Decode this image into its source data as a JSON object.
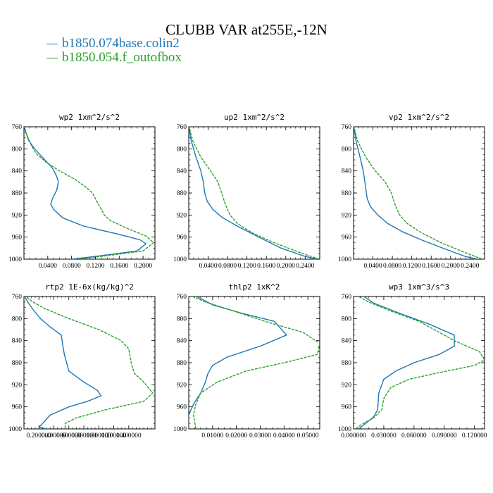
{
  "figure": {
    "title": "CLUBB VAR at255E,-12N",
    "legend": [
      {
        "label": "b1850.074base.colin2",
        "color": "#1f77b4"
      },
      {
        "label": "b1850.054.f_outofbox",
        "color": "#2ca02c"
      }
    ]
  },
  "chart_data": [
    {
      "type": "line",
      "title": "wp2  1xm^2/s^2",
      "ylim": [
        760,
        1000
      ],
      "xlim": [
        0,
        0.22
      ],
      "xticks": [
        0.04,
        0.08,
        0.12,
        0.16,
        0.2
      ],
      "xtick_labels": [
        "0.0400",
        "0.0800",
        "0.1200",
        "0.1600",
        "0.2000"
      ],
      "yticks": [
        760,
        800,
        840,
        880,
        920,
        960,
        1000
      ],
      "series": [
        {
          "color": "#1f77b4",
          "dashed": false,
          "points": [
            [
              0.0,
              757
            ],
            [
              0.003,
              770
            ],
            [
              0.008,
              785
            ],
            [
              0.018,
              800
            ],
            [
              0.035,
              820
            ],
            [
              0.048,
              835
            ],
            [
              0.055,
              850
            ],
            [
              0.058,
              860
            ],
            [
              0.055,
              875
            ],
            [
              0.048,
              890
            ],
            [
              0.045,
              900
            ],
            [
              0.05,
              910
            ],
            [
              0.065,
              925
            ],
            [
              0.1,
              940
            ],
            [
              0.16,
              955
            ],
            [
              0.195,
              965
            ],
            [
              0.205,
              972
            ],
            [
              0.19,
              985
            ],
            [
              0.12,
              995
            ],
            [
              0.08,
              1000
            ]
          ]
        },
        {
          "color": "#2ca02c",
          "dashed": true,
          "points": [
            [
              0.0,
              757
            ],
            [
              0.005,
              775
            ],
            [
              0.013,
              795
            ],
            [
              0.02,
              808
            ],
            [
              0.038,
              825
            ],
            [
              0.06,
              840
            ],
            [
              0.085,
              855
            ],
            [
              0.105,
              870
            ],
            [
              0.115,
              880
            ],
            [
              0.12,
              890
            ],
            [
              0.125,
              900
            ],
            [
              0.13,
              910
            ],
            [
              0.135,
              920
            ],
            [
              0.145,
              930
            ],
            [
              0.175,
              945
            ],
            [
              0.205,
              958
            ],
            [
              0.218,
              970
            ],
            [
              0.2,
              985
            ],
            [
              0.13,
              995
            ],
            [
              0.09,
              1000
            ]
          ]
        }
      ]
    },
    {
      "type": "line",
      "title": "up2  1xm^2/s^2",
      "ylim": [
        760,
        1000
      ],
      "xlim": [
        0,
        0.27
      ],
      "xticks": [
        0.04,
        0.08,
        0.12,
        0.16,
        0.2,
        0.24
      ],
      "xtick_labels": [
        "0.0400",
        "0.0800",
        "0.1200",
        "0.1600",
        "0.2000",
        "0.2400"
      ],
      "yticks": [
        760,
        800,
        840,
        880,
        920,
        960,
        1000
      ],
      "series": [
        {
          "color": "#1f77b4",
          "dashed": false,
          "points": [
            [
              0.0,
              757
            ],
            [
              0.005,
              785
            ],
            [
              0.015,
              815
            ],
            [
              0.025,
              840
            ],
            [
              0.03,
              860
            ],
            [
              0.033,
              880
            ],
            [
              0.038,
              895
            ],
            [
              0.05,
              910
            ],
            [
              0.07,
              925
            ],
            [
              0.1,
              940
            ],
            [
              0.14,
              958
            ],
            [
              0.19,
              980
            ],
            [
              0.24,
              995
            ],
            [
              0.265,
              1000
            ]
          ]
        },
        {
          "color": "#2ca02c",
          "dashed": true,
          "points": [
            [
              0.0,
              757
            ],
            [
              0.008,
              785
            ],
            [
              0.025,
              815
            ],
            [
              0.045,
              840
            ],
            [
              0.06,
              860
            ],
            [
              0.068,
              880
            ],
            [
              0.075,
              900
            ],
            [
              0.085,
              920
            ],
            [
              0.1,
              935
            ],
            [
              0.13,
              952
            ],
            [
              0.17,
              968
            ],
            [
              0.22,
              985
            ],
            [
              0.255,
              996
            ],
            [
              0.27,
              1000
            ]
          ]
        }
      ]
    },
    {
      "type": "line",
      "title": "vp2  1xm^2/s^2",
      "ylim": [
        760,
        1000
      ],
      "xlim": [
        0,
        0.27
      ],
      "xticks": [
        0.04,
        0.08,
        0.12,
        0.16,
        0.2,
        0.24
      ],
      "xtick_labels": [
        "0.0400",
        "0.0800",
        "0.1200",
        "0.1600",
        "0.2000",
        "0.2400"
      ],
      "yticks": [
        760,
        800,
        840,
        880,
        920,
        960,
        1000
      ],
      "series": [
        {
          "color": "#1f77b4",
          "dashed": false,
          "points": [
            [
              0.0,
              757
            ],
            [
              0.005,
              785
            ],
            [
              0.012,
              810
            ],
            [
              0.02,
              840
            ],
            [
              0.025,
              870
            ],
            [
              0.028,
              890
            ],
            [
              0.035,
              905
            ],
            [
              0.05,
              920
            ],
            [
              0.07,
              935
            ],
            [
              0.1,
              950
            ],
            [
              0.14,
              965
            ],
            [
              0.19,
              982
            ],
            [
              0.23,
              995
            ],
            [
              0.255,
              1000
            ]
          ]
        },
        {
          "color": "#2ca02c",
          "dashed": true,
          "points": [
            [
              0.0,
              757
            ],
            [
              0.008,
              785
            ],
            [
              0.025,
              815
            ],
            [
              0.045,
              840
            ],
            [
              0.065,
              860
            ],
            [
              0.078,
              880
            ],
            [
              0.085,
              900
            ],
            [
              0.095,
              920
            ],
            [
              0.11,
              935
            ],
            [
              0.14,
              952
            ],
            [
              0.18,
              970
            ],
            [
              0.23,
              988
            ],
            [
              0.265,
              1000
            ]
          ]
        }
      ]
    },
    {
      "type": "line",
      "title": "rtp2  1E-6x(kg/kg)^2",
      "ylim": [
        760,
        1000
      ],
      "xlim": [
        0,
        1.75
      ],
      "xticks": [
        0.2,
        0.4,
        0.6,
        0.8,
        1.0,
        1.2,
        1.4
      ],
      "xtick_labels": [
        "0.200000",
        "0.400000",
        "0.600000",
        "0.800000",
        "1.000000",
        "1.200000",
        "1.400000"
      ],
      "yticks": [
        760,
        800,
        840,
        880,
        920,
        960,
        1000
      ],
      "series": [
        {
          "color": "#1f77b4",
          "dashed": false,
          "points": [
            [
              0.0,
              757
            ],
            [
              0.05,
              770
            ],
            [
              0.13,
              785
            ],
            [
              0.22,
              800
            ],
            [
              0.35,
              815
            ],
            [
              0.5,
              830
            ],
            [
              0.52,
              850
            ],
            [
              0.54,
              865
            ],
            [
              0.57,
              880
            ],
            [
              0.6,
              895
            ],
            [
              0.8,
              915
            ],
            [
              0.98,
              930
            ],
            [
              1.03,
              940
            ],
            [
              0.85,
              950
            ],
            [
              0.6,
              960
            ],
            [
              0.35,
              975
            ],
            [
              0.25,
              990
            ],
            [
              0.2,
              997
            ],
            [
              0.3,
              1000
            ]
          ]
        },
        {
          "color": "#2ca02c",
          "dashed": true,
          "points": [
            [
              0.0,
              757
            ],
            [
              0.12,
              770
            ],
            [
              0.28,
              782
            ],
            [
              0.6,
              800
            ],
            [
              1.0,
              820
            ],
            [
              1.3,
              840
            ],
            [
              1.4,
              855
            ],
            [
              1.42,
              870
            ],
            [
              1.44,
              885
            ],
            [
              1.48,
              900
            ],
            [
              1.6,
              915
            ],
            [
              1.72,
              935
            ],
            [
              1.6,
              950
            ],
            [
              1.1,
              965
            ],
            [
              0.7,
              980
            ],
            [
              0.55,
              990
            ],
            [
              0.55,
              1000
            ]
          ]
        }
      ]
    },
    {
      "type": "line",
      "title": "thlp2  1xK^2",
      "ylim": [
        760,
        1000
      ],
      "xlim": [
        0,
        0.055
      ],
      "xticks": [
        0.01,
        0.02,
        0.03,
        0.04,
        0.05
      ],
      "xtick_labels": [
        "0.01000",
        "0.02000",
        "0.03000",
        "0.04000",
        "0.05000"
      ],
      "yticks": [
        760,
        800,
        840,
        880,
        920,
        960,
        1000
      ],
      "series": [
        {
          "color": "#1f77b4",
          "dashed": false,
          "points": [
            [
              0.002,
              757
            ],
            [
              0.01,
              775
            ],
            [
              0.022,
              790
            ],
            [
              0.036,
              805
            ],
            [
              0.041,
              830
            ],
            [
              0.03,
              850
            ],
            [
              0.016,
              870
            ],
            [
              0.01,
              885
            ],
            [
              0.008,
              900
            ],
            [
              0.007,
              915
            ],
            [
              0.005,
              935
            ],
            [
              0.002,
              955
            ],
            [
              0.0,
              975
            ],
            [
              0.0,
              995
            ]
          ]
        },
        {
          "color": "#2ca02c",
          "dashed": true,
          "points": [
            [
              0.0,
              757
            ],
            [
              0.007,
              770
            ],
            [
              0.018,
              785
            ],
            [
              0.032,
              805
            ],
            [
              0.048,
              825
            ],
            [
              0.055,
              845
            ],
            [
              0.054,
              865
            ],
            [
              0.04,
              880
            ],
            [
              0.024,
              895
            ],
            [
              0.012,
              915
            ],
            [
              0.005,
              935
            ],
            [
              0.003,
              955
            ],
            [
              0.002,
              975
            ],
            [
              0.003,
              1000
            ]
          ]
        }
      ]
    },
    {
      "type": "line",
      "title": "wp3  1xm^3/s^3",
      "ylim": [
        760,
        1000
      ],
      "xlim": [
        0,
        0.13
      ],
      "xticks": [
        0.0,
        0.03,
        0.06,
        0.09,
        0.12
      ],
      "xtick_labels": [
        "0.000000",
        "0.030000",
        "0.060000",
        "0.090000",
        "0.120000"
      ],
      "yticks": [
        760,
        800,
        840,
        880,
        920,
        960,
        1000
      ],
      "series": [
        {
          "color": "#1f77b4",
          "dashed": false,
          "points": [
            [
              0.008,
              757
            ],
            [
              0.02,
              772
            ],
            [
              0.045,
              790
            ],
            [
              0.075,
              810
            ],
            [
              0.1,
              830
            ],
            [
              0.1,
              850
            ],
            [
              0.085,
              865
            ],
            [
              0.06,
              880
            ],
            [
              0.042,
              895
            ],
            [
              0.03,
              910
            ],
            [
              0.025,
              935
            ],
            [
              0.024,
              965
            ],
            [
              0.02,
              978
            ],
            [
              0.012,
              990
            ],
            [
              0.005,
              1000
            ]
          ]
        },
        {
          "color": "#2ca02c",
          "dashed": true,
          "points": [
            [
              0.002,
              757
            ],
            [
              0.015,
              770
            ],
            [
              0.035,
              785
            ],
            [
              0.065,
              805
            ],
            [
              0.1,
              840
            ],
            [
              0.125,
              860
            ],
            [
              0.13,
              875
            ],
            [
              0.12,
              885
            ],
            [
              0.085,
              898
            ],
            [
              0.055,
              910
            ],
            [
              0.037,
              925
            ],
            [
              0.03,
              945
            ],
            [
              0.028,
              965
            ],
            [
              0.02,
              980
            ],
            [
              0.008,
              992
            ],
            [
              0.002,
              1000
            ]
          ]
        }
      ]
    }
  ]
}
